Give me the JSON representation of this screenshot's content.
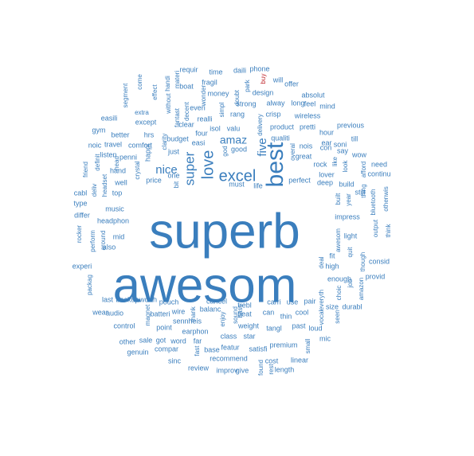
{
  "colors": {
    "primary": "#3a7ebd",
    "highlight": "#c0282d"
  },
  "words": [
    {
      "text": "superb",
      "emphasis": "primary"
    },
    {
      "text": "awesom",
      "emphasis": "primary"
    },
    {
      "text": "best",
      "emphasis": "primary"
    },
    {
      "text": "love",
      "emphasis": "primary"
    },
    {
      "text": "excel",
      "emphasis": "primary"
    },
    {
      "text": "five",
      "emphasis": "primary"
    },
    {
      "text": "amaz",
      "emphasis": "primary"
    },
    {
      "text": "nice",
      "emphasis": "primary"
    },
    {
      "text": "super",
      "emphasis": "primary"
    },
    {
      "text": "buy",
      "emphasis": "highlight"
    },
    {
      "text": "requir"
    },
    {
      "text": "time"
    },
    {
      "text": "daili"
    },
    {
      "text": "phone"
    },
    {
      "text": "materi"
    },
    {
      "text": "handi"
    },
    {
      "text": "boat"
    },
    {
      "text": "fragil"
    },
    {
      "text": "park"
    },
    {
      "text": "will"
    },
    {
      "text": "offer"
    },
    {
      "text": "come"
    },
    {
      "text": "effect"
    },
    {
      "text": "without"
    },
    {
      "text": "wonder"
    },
    {
      "text": "money"
    },
    {
      "text": "doubt"
    },
    {
      "text": "design"
    },
    {
      "text": "absolut"
    },
    {
      "text": "segment"
    },
    {
      "text": "everi"
    },
    {
      "text": "strong"
    },
    {
      "text": "alway"
    },
    {
      "text": "long"
    },
    {
      "text": "feel"
    },
    {
      "text": "mind"
    },
    {
      "text": "extra"
    },
    {
      "text": "decent"
    },
    {
      "text": "simpl"
    },
    {
      "text": "rang"
    },
    {
      "text": "crisp"
    },
    {
      "text": "except"
    },
    {
      "text": "fantast"
    },
    {
      "text": "realli"
    },
    {
      "text": "delivery"
    },
    {
      "text": "wireless"
    },
    {
      "text": "easili"
    },
    {
      "text": "clear"
    },
    {
      "text": "isol"
    },
    {
      "text": "valu"
    },
    {
      "text": "product"
    },
    {
      "text": "pretti"
    },
    {
      "text": "gym"
    },
    {
      "text": "hrs"
    },
    {
      "text": "clarity"
    },
    {
      "text": "budget"
    },
    {
      "text": "four"
    },
    {
      "text": "previous"
    },
    {
      "text": "better"
    },
    {
      "text": "easi"
    },
    {
      "text": "qualiti"
    },
    {
      "text": "hour"
    },
    {
      "text": "noic"
    },
    {
      "text": "travel"
    },
    {
      "text": "comfort"
    },
    {
      "text": "just"
    },
    {
      "text": "good"
    },
    {
      "text": "ear"
    },
    {
      "text": "listen"
    },
    {
      "text": "happi"
    },
    {
      "text": "god"
    },
    {
      "text": "soni"
    },
    {
      "text": "till"
    },
    {
      "text": "definit"
    },
    {
      "text": "friend"
    },
    {
      "text": "crystal"
    },
    {
      "text": "penni"
    },
    {
      "text": "overal"
    },
    {
      "text": "nois"
    },
    {
      "text": "con"
    },
    {
      "text": "say"
    },
    {
      "text": "hand"
    },
    {
      "text": "great"
    },
    {
      "text": "wow"
    },
    {
      "text": "head"
    },
    {
      "text": "one"
    },
    {
      "text": "bit"
    },
    {
      "text": "price"
    },
    {
      "text": "rock"
    },
    {
      "text": "like"
    },
    {
      "text": "look"
    },
    {
      "text": "well"
    },
    {
      "text": "lover"
    },
    {
      "text": "need"
    },
    {
      "text": "afford"
    },
    {
      "text": "headset"
    },
    {
      "text": "deliv"
    },
    {
      "text": "perfect"
    },
    {
      "text": "must"
    },
    {
      "text": "life"
    },
    {
      "text": "deep"
    },
    {
      "text": "build"
    },
    {
      "text": "continu"
    },
    {
      "text": "cabl"
    },
    {
      "text": "top"
    },
    {
      "text": "thing"
    },
    {
      "text": "still"
    },
    {
      "text": "type"
    },
    {
      "text": "built"
    },
    {
      "text": "year"
    },
    {
      "text": "bluetooth"
    },
    {
      "text": "othenwis"
    },
    {
      "text": "music"
    },
    {
      "text": "impress"
    },
    {
      "text": "differ"
    },
    {
      "text": "headphon"
    },
    {
      "text": "think"
    },
    {
      "text": "rocker"
    },
    {
      "text": "perform"
    },
    {
      "text": "around"
    },
    {
      "text": "light"
    },
    {
      "text": "output"
    },
    {
      "text": "mid"
    },
    {
      "text": "awesom"
    },
    {
      "text": "also"
    },
    {
      "text": "quit"
    },
    {
      "text": "fit"
    },
    {
      "text": "though"
    },
    {
      "text": "consid"
    },
    {
      "text": "experi"
    },
    {
      "text": "high"
    },
    {
      "text": "packag"
    },
    {
      "text": "deal"
    },
    {
      "text": "enough"
    },
    {
      "text": "job"
    },
    {
      "text": "provid"
    },
    {
      "text": "everyth"
    },
    {
      "text": "choic"
    },
    {
      "text": "amazon"
    },
    {
      "text": "last"
    },
    {
      "text": "backup"
    },
    {
      "text": "worth"
    },
    {
      "text": "pouch"
    },
    {
      "text": "cancel"
    },
    {
      "text": "carri"
    },
    {
      "text": "use"
    },
    {
      "text": "pair"
    },
    {
      "text": "vocal"
    },
    {
      "text": "size"
    },
    {
      "text": "durabl"
    },
    {
      "text": "wear"
    },
    {
      "text": "magnet"
    },
    {
      "text": "thank"
    },
    {
      "text": "balanc"
    },
    {
      "text": "trebl"
    },
    {
      "text": "bass"
    },
    {
      "text": "can"
    },
    {
      "text": "thin"
    },
    {
      "text": "cool"
    },
    {
      "text": "seen"
    },
    {
      "text": "audio"
    },
    {
      "text": "batteri"
    },
    {
      "text": "wire"
    },
    {
      "text": "enjoy"
    },
    {
      "text": "beat"
    },
    {
      "text": "control"
    },
    {
      "text": "point"
    },
    {
      "text": "sennheis"
    },
    {
      "text": "sound"
    },
    {
      "text": "weight"
    },
    {
      "text": "tangl"
    },
    {
      "text": "past"
    },
    {
      "text": "loud"
    },
    {
      "text": "earphon"
    },
    {
      "text": "class"
    },
    {
      "text": "star"
    },
    {
      "text": "mic"
    },
    {
      "text": "other"
    },
    {
      "text": "sale"
    },
    {
      "text": "got"
    },
    {
      "text": "word"
    },
    {
      "text": "far"
    },
    {
      "text": "featur"
    },
    {
      "text": "satisfi"
    },
    {
      "text": "premium"
    },
    {
      "text": "genuin"
    },
    {
      "text": "compar"
    },
    {
      "text": "small"
    },
    {
      "text": "sinc"
    },
    {
      "text": "fast"
    },
    {
      "text": "base"
    },
    {
      "text": "recommend"
    },
    {
      "text": "cost"
    },
    {
      "text": "linear"
    },
    {
      "text": "review"
    },
    {
      "text": "improv"
    },
    {
      "text": "give"
    },
    {
      "text": "found"
    },
    {
      "text": "rest"
    },
    {
      "text": "length"
    }
  ]
}
